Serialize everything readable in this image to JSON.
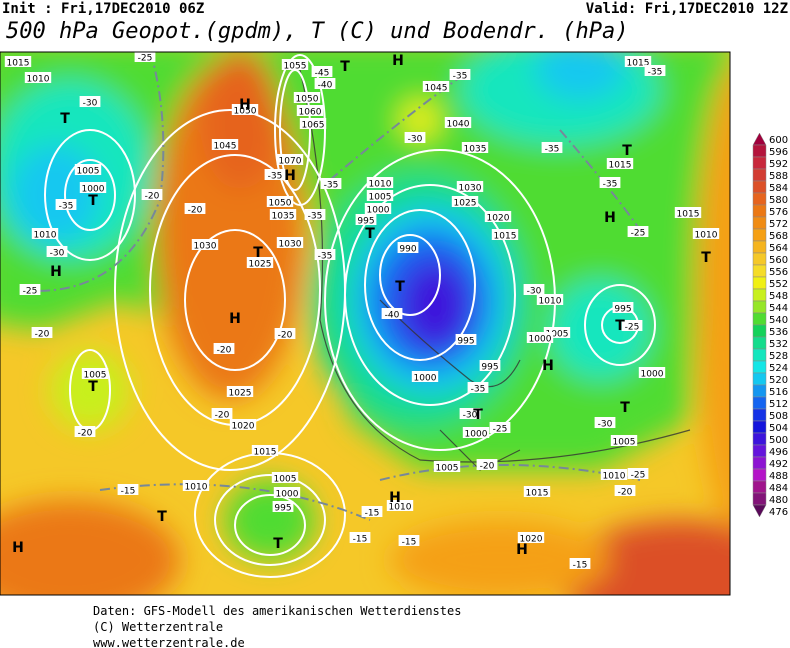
{
  "header": {
    "init": "Init : Fri,17DEC2010 06Z",
    "valid": "Valid: Fri,17DEC2010 12Z",
    "title": "500 hPa Geopot.(gpdm), T (C) und Bodendr. (hPa)"
  },
  "colorbar": {
    "ticks": [
      600,
      596,
      592,
      588,
      584,
      580,
      576,
      572,
      568,
      564,
      560,
      556,
      552,
      548,
      544,
      540,
      536,
      532,
      528,
      524,
      520,
      516,
      512,
      508,
      504,
      500,
      496,
      492,
      488,
      484,
      480,
      476
    ],
    "colors": [
      "#a0003c",
      "#b4143c",
      "#c8283c",
      "#d23c32",
      "#dc5028",
      "#e6641e",
      "#eb7814",
      "#f08c14",
      "#f5a014",
      "#f5b41e",
      "#f5c828",
      "#f5dc28",
      "#f0f014",
      "#c8f01e",
      "#96e628",
      "#50dc32",
      "#14d25a",
      "#14dc8c",
      "#14e6be",
      "#14e6e6",
      "#14c8f0",
      "#1496f0",
      "#1464f0",
      "#1432e6",
      "#1414dc",
      "#3c14dc",
      "#6414dc",
      "#8c14d2",
      "#b414c8",
      "#a0148c",
      "#821478",
      "#5a0a5a"
    ]
  },
  "map_labels": {
    "isobars": [
      "1015",
      "1010",
      "1015",
      "1005",
      "1000",
      "1010",
      "1045",
      "1050",
      "1055",
      "1050",
      "1060",
      "1065",
      "1070",
      "1050",
      "1035",
      "1030",
      "1025",
      "1030",
      "1045",
      "1040",
      "1035",
      "1030",
      "1025",
      "1020",
      "1015",
      "1010",
      "1005",
      "1000",
      "995",
      "990",
      "995",
      "995",
      "1000",
      "1000",
      "1005",
      "1010",
      "1005",
      "1000",
      "995",
      "1000",
      "1005",
      "1010",
      "1015",
      "1010",
      "1005",
      "1025",
      "1020",
      "1015",
      "1010",
      "1005",
      "1000",
      "995",
      "1010",
      "1015",
      "1020",
      "1015"
    ],
    "temperatures": [
      "-25",
      "-30",
      "-20",
      "-35",
      "-30",
      "-25",
      "-20",
      "-20",
      "-20",
      "-20",
      "-20",
      "-20",
      "-15",
      "-35",
      "-35",
      "-35",
      "-40",
      "-35",
      "-30",
      "-25",
      "-20",
      "-30",
      "-35",
      "-35",
      "-35",
      "-35",
      "-25",
      "-30",
      "-25",
      "-30",
      "-25",
      "-20",
      "-15",
      "-15",
      "-15",
      "-15",
      "-45",
      "-40",
      "-35"
    ],
    "centers": [
      "H",
      "H",
      "H",
      "T",
      "T",
      "T",
      "H",
      "T",
      "T",
      "H",
      "T",
      "T",
      "H",
      "T",
      "H",
      "T",
      "T",
      "T",
      "T",
      "T",
      "H",
      "H",
      "H",
      "T"
    ]
  },
  "footer": {
    "lines": [
      "Daten: GFS-Modell des amerikanischen Wetterdienstes",
      "(C) Wetterzentrale",
      "www.wetterzentrale.de"
    ]
  }
}
